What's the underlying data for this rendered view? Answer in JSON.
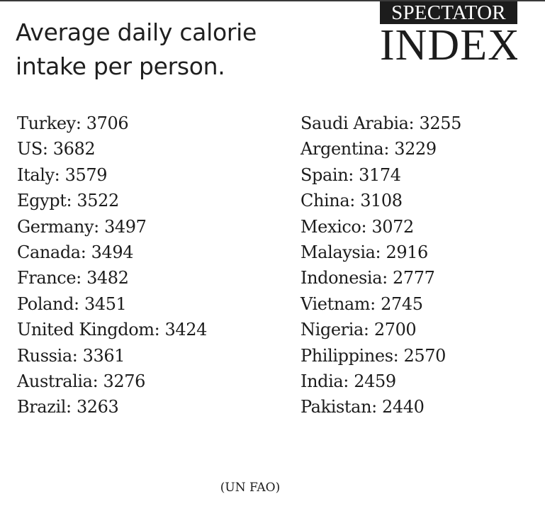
{
  "title": {
    "line1": "Average daily calorie",
    "line2": "intake per person."
  },
  "logo": {
    "top": "SPECTATOR",
    "bottom": "INDEX"
  },
  "left_column": [
    {
      "country": "Turkey",
      "value": "3706"
    },
    {
      "country": "US",
      "value": "3682"
    },
    {
      "country": "Italy",
      "value": "3579"
    },
    {
      "country": "Egypt",
      "value": "3522"
    },
    {
      "country": "Germany",
      "value": "3497"
    },
    {
      "country": "Canada",
      "value": "3494"
    },
    {
      "country": "France",
      "value": "3482"
    },
    {
      "country": "Poland",
      "value": "3451"
    },
    {
      "country": "United Kingdom",
      "value": "3424"
    },
    {
      "country": "Russia",
      "value": "3361"
    },
    {
      "country": "Australia",
      "value": "3276"
    },
    {
      "country": "Brazil",
      "value": "3263"
    }
  ],
  "right_column": [
    {
      "country": "Saudi Arabia",
      "value": "3255"
    },
    {
      "country": "Argentina",
      "value": "3229"
    },
    {
      "country": "Spain",
      "value": "3174"
    },
    {
      "country": "China",
      "value": "3108"
    },
    {
      "country": "Mexico",
      "value": "3072"
    },
    {
      "country": "Malaysia",
      "value": "2916"
    },
    {
      "country": "Indonesia",
      "value": "2777"
    },
    {
      "country": "Vietnam",
      "value": "2745"
    },
    {
      "country": "Nigeria",
      "value": "2700"
    },
    {
      "country": "Philippines",
      "value": "2570"
    },
    {
      "country": "India",
      "value": "2459"
    },
    {
      "country": "Pakistan",
      "value": "2440"
    }
  ],
  "source": "(UN FAO)"
}
